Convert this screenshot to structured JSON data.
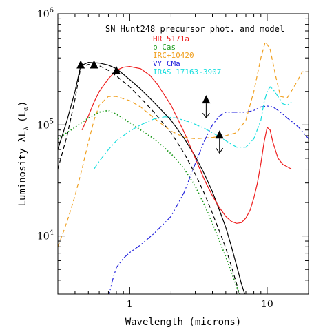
{
  "chart_data": {
    "type": "line",
    "title": "SN Hunt248 precursor phot. and model",
    "xlabel": "Wavelength (microns)",
    "ylabel": "Luminosity λL",
    "ylabel_sub": "λ",
    "ylabel_unit": "(L",
    "ylabel_unit_sub": "⊙",
    "ylabel_unit_close": ")",
    "x_scale": "log",
    "y_scale": "log",
    "xlim": [
      0.3,
      20
    ],
    "ylim": [
      3000,
      1000000
    ],
    "x_ticks": [
      {
        "value": 1,
        "label": "1"
      },
      {
        "value": 10,
        "label": "10"
      }
    ],
    "y_ticks": [
      {
        "value": 10000,
        "base": "10",
        "exp": "4"
      },
      {
        "value": 100000,
        "base": "10",
        "exp": "5"
      },
      {
        "value": 1000000,
        "base": "10",
        "exp": "6"
      }
    ],
    "legend_location": "top-right",
    "series": [
      {
        "name": "",
        "style": "solid",
        "color": "#000000",
        "points": [
          [
            0.3,
            60000
          ],
          [
            0.35,
            110000
          ],
          [
            0.4,
            200000
          ],
          [
            0.44,
            340000
          ],
          [
            0.5,
            365000
          ],
          [
            0.6,
            360000
          ],
          [
            0.7,
            345000
          ],
          [
            0.8,
            320000
          ],
          [
            0.9,
            285000
          ],
          [
            1.0,
            255000
          ],
          [
            1.2,
            210000
          ],
          [
            1.5,
            160000
          ],
          [
            2.0,
            110000
          ],
          [
            2.5,
            75000
          ],
          [
            3.0,
            52000
          ],
          [
            3.5,
            36000
          ],
          [
            4.0,
            25000
          ],
          [
            4.5,
            17000
          ],
          [
            5.0,
            12000
          ],
          [
            5.5,
            8000
          ],
          [
            6.0,
            5400
          ],
          [
            6.5,
            3700
          ],
          [
            7.0,
            2800
          ]
        ]
      },
      {
        "name": "",
        "style": "dashed",
        "color": "#000000",
        "points": [
          [
            0.3,
            40000
          ],
          [
            0.35,
            80000
          ],
          [
            0.4,
            170000
          ],
          [
            0.44,
            330000
          ],
          [
            0.5,
            350000
          ],
          [
            0.6,
            340000
          ],
          [
            0.7,
            310000
          ],
          [
            0.8,
            275000
          ],
          [
            1.0,
            220000
          ],
          [
            1.2,
            175000
          ],
          [
            1.5,
            130000
          ],
          [
            2.0,
            85000
          ],
          [
            2.5,
            55000
          ],
          [
            3.0,
            36000
          ],
          [
            3.5,
            24000
          ],
          [
            4.0,
            16000
          ],
          [
            4.5,
            11000
          ],
          [
            5.0,
            7800
          ],
          [
            5.5,
            5300
          ],
          [
            6.0,
            3700
          ],
          [
            6.3,
            2800
          ]
        ]
      },
      {
        "name": "HR 5171a",
        "style": "solid",
        "color": "#ee1c1c",
        "points": [
          [
            0.45,
            90000
          ],
          [
            0.5,
            120000
          ],
          [
            0.55,
            160000
          ],
          [
            0.6,
            200000
          ],
          [
            0.7,
            260000
          ],
          [
            0.8,
            310000
          ],
          [
            0.9,
            330000
          ],
          [
            1.0,
            335000
          ],
          [
            1.2,
            320000
          ],
          [
            1.4,
            280000
          ],
          [
            1.6,
            230000
          ],
          [
            2.0,
            150000
          ],
          [
            2.5,
            85000
          ],
          [
            3.0,
            50000
          ],
          [
            3.5,
            32000
          ],
          [
            4.0,
            23000
          ],
          [
            4.5,
            18000
          ],
          [
            5.0,
            15000
          ],
          [
            5.5,
            13500
          ],
          [
            6.0,
            13000
          ],
          [
            6.5,
            13200
          ],
          [
            7.0,
            14500
          ],
          [
            7.5,
            17000
          ],
          [
            8.0,
            22000
          ],
          [
            8.5,
            30000
          ],
          [
            9.0,
            45000
          ],
          [
            9.5,
            70000
          ],
          [
            10.0,
            95000
          ],
          [
            10.5,
            90000
          ],
          [
            11.0,
            70000
          ],
          [
            12.0,
            50000
          ],
          [
            13.0,
            44000
          ],
          [
            14.0,
            42000
          ],
          [
            15.0,
            40000
          ]
        ]
      },
      {
        "name": "ρ Cas",
        "style": "dotted",
        "color": "#1d9b1d",
        "points": [
          [
            0.3,
            75000
          ],
          [
            0.4,
            95000
          ],
          [
            0.5,
            115000
          ],
          [
            0.6,
            130000
          ],
          [
            0.7,
            135000
          ],
          [
            0.8,
            125000
          ],
          [
            1.0,
            105000
          ],
          [
            1.2,
            90000
          ],
          [
            1.5,
            75000
          ],
          [
            2.0,
            55000
          ],
          [
            2.5,
            40000
          ],
          [
            3.0,
            28000
          ],
          [
            3.5,
            19000
          ],
          [
            4.0,
            13000
          ],
          [
            4.5,
            9000
          ],
          [
            5.0,
            6500
          ],
          [
            5.5,
            4700
          ],
          [
            6.0,
            3500
          ],
          [
            6.5,
            2800
          ]
        ]
      },
      {
        "name": "IRC+10420",
        "style": "dashed",
        "color": "#f0a020",
        "points": [
          [
            0.3,
            8000
          ],
          [
            0.33,
            11000
          ],
          [
            0.36,
            15000
          ],
          [
            0.4,
            23000
          ],
          [
            0.45,
            40000
          ],
          [
            0.5,
            70000
          ],
          [
            0.55,
            110000
          ],
          [
            0.6,
            150000
          ],
          [
            0.7,
            180000
          ],
          [
            0.8,
            180000
          ],
          [
            1.0,
            165000
          ],
          [
            1.2,
            145000
          ],
          [
            1.5,
            115000
          ],
          [
            2.0,
            88000
          ],
          [
            2.5,
            77000
          ],
          [
            3.0,
            75000
          ],
          [
            4.0,
            77000
          ],
          [
            5.0,
            80000
          ],
          [
            6.0,
            85000
          ],
          [
            7.0,
            110000
          ],
          [
            8.0,
            200000
          ],
          [
            9.0,
            400000
          ],
          [
            9.7,
            560000
          ],
          [
            10.5,
            480000
          ],
          [
            11.5,
            280000
          ],
          [
            12.5,
            180000
          ],
          [
            14.0,
            175000
          ],
          [
            16.0,
            230000
          ],
          [
            18.0,
            300000
          ],
          [
            20.0,
            300000
          ]
        ]
      },
      {
        "name": "VY CMa",
        "style": "dashdotdot",
        "color": "#2222dd",
        "points": [
          [
            0.7,
            2800
          ],
          [
            0.75,
            4000
          ],
          [
            0.8,
            5200
          ],
          [
            0.9,
            6300
          ],
          [
            1.0,
            7100
          ],
          [
            1.2,
            8300
          ],
          [
            1.5,
            10500
          ],
          [
            2.0,
            15000
          ],
          [
            2.5,
            25000
          ],
          [
            3.0,
            45000
          ],
          [
            3.5,
            72000
          ],
          [
            4.0,
            100000
          ],
          [
            4.5,
            120000
          ],
          [
            5.0,
            130000
          ],
          [
            6.0,
            130000
          ],
          [
            7.0,
            130000
          ],
          [
            8.0,
            135000
          ],
          [
            9.0,
            145000
          ],
          [
            10.0,
            148000
          ],
          [
            11.0,
            145000
          ],
          [
            12.0,
            135000
          ],
          [
            13.0,
            125000
          ],
          [
            14.0,
            115000
          ],
          [
            15.0,
            108000
          ],
          [
            17.0,
            95000
          ],
          [
            20.0,
            75000
          ]
        ]
      },
      {
        "name": "IRAS 17163-3907",
        "style": "dashdot",
        "color": "#18dede",
        "points": [
          [
            0.55,
            40000
          ],
          [
            0.6,
            47000
          ],
          [
            0.7,
            60000
          ],
          [
            0.8,
            72000
          ],
          [
            1.0,
            88000
          ],
          [
            1.2,
            100000
          ],
          [
            1.5,
            113000
          ],
          [
            1.8,
            118000
          ],
          [
            2.2,
            115000
          ],
          [
            2.8,
            105000
          ],
          [
            3.5,
            93000
          ],
          [
            4.0,
            85000
          ],
          [
            4.5,
            78000
          ],
          [
            5.0,
            72000
          ],
          [
            5.5,
            67000
          ],
          [
            6.0,
            63000
          ],
          [
            7.0,
            63000
          ],
          [
            8.0,
            75000
          ],
          [
            9.0,
            110000
          ],
          [
            9.5,
            160000
          ],
          [
            10.0,
            200000
          ],
          [
            10.5,
            220000
          ],
          [
            11.0,
            210000
          ],
          [
            12.0,
            180000
          ],
          [
            13.0,
            155000
          ],
          [
            14.0,
            150000
          ],
          [
            15.0,
            160000
          ]
        ]
      }
    ],
    "photometry": [
      {
        "x": 0.44,
        "y": 350000
      },
      {
        "x": 0.55,
        "y": 350000
      },
      {
        "x": 0.8,
        "y": 310000
      }
    ],
    "upper_limits": [
      {
        "x": 3.6,
        "y": 170000
      },
      {
        "x": 4.5,
        "y": 82000
      }
    ]
  }
}
